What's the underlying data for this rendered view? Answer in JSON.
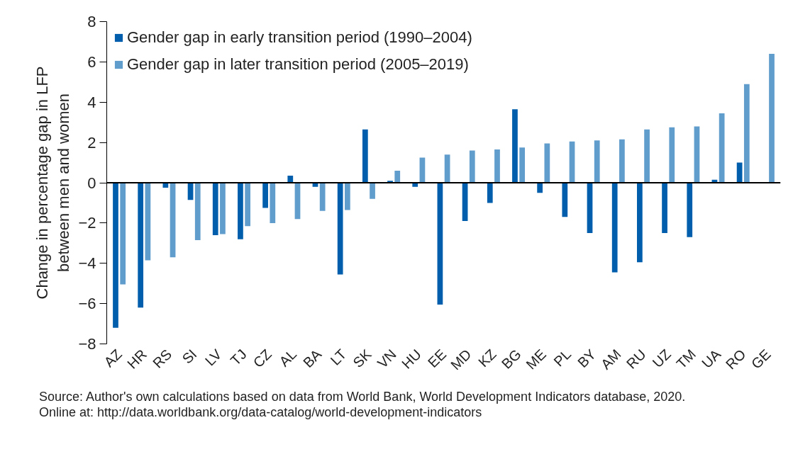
{
  "chart_data": {
    "type": "bar",
    "categories": [
      "AZ",
      "HR",
      "RS",
      "SI",
      "LV",
      "TJ",
      "CZ",
      "AL",
      "BA",
      "LT",
      "SK",
      "VN",
      "HU",
      "EE",
      "MD",
      "KZ",
      "BG",
      "ME",
      "PL",
      "BY",
      "AM",
      "RU",
      "UZ",
      "TM",
      "UA",
      "RO",
      "GE"
    ],
    "series": [
      {
        "name": "Gender gap in early transition period (1990–2004)",
        "color": "#005eac",
        "values": [
          -7.2,
          -6.2,
          -0.25,
          -0.85,
          -2.6,
          -2.8,
          -1.25,
          0.35,
          -0.2,
          -4.55,
          2.65,
          0.1,
          -0.2,
          -6.05,
          -1.9,
          -1.0,
          3.65,
          -0.5,
          -1.7,
          -2.5,
          -4.45,
          -3.95,
          -2.5,
          -2.7,
          0.15,
          1.0,
          null
        ]
      },
      {
        "name": "Gender gap in later transition period (2005–2019)",
        "color": "#609dcd",
        "values": [
          -5.05,
          -3.85,
          -3.7,
          -2.85,
          -2.55,
          -2.15,
          -2.0,
          -1.8,
          -1.4,
          -1.35,
          -0.8,
          0.6,
          1.25,
          1.4,
          1.6,
          1.65,
          1.75,
          1.95,
          2.05,
          2.1,
          2.15,
          2.65,
          2.75,
          2.8,
          3.45,
          4.9,
          6.4
        ]
      }
    ],
    "ylabel": "Change in percentage gap in LFP\nbetween men and women",
    "ylim": [
      -8,
      8
    ],
    "yticks": [
      {
        "value": -8,
        "label": "−8"
      },
      {
        "value": -6,
        "label": "−6"
      },
      {
        "value": -4,
        "label": "−4"
      },
      {
        "value": -2,
        "label": "−2"
      },
      0,
      2,
      4,
      6,
      8
    ],
    "legend": "top left",
    "annotations": [
      "Source: Author's own calculations based on data from World Bank, World Development Indicators database, 2020.",
      "Online at:   http://data.worldbank.org/data-catalog/world-development-indicators"
    ]
  }
}
